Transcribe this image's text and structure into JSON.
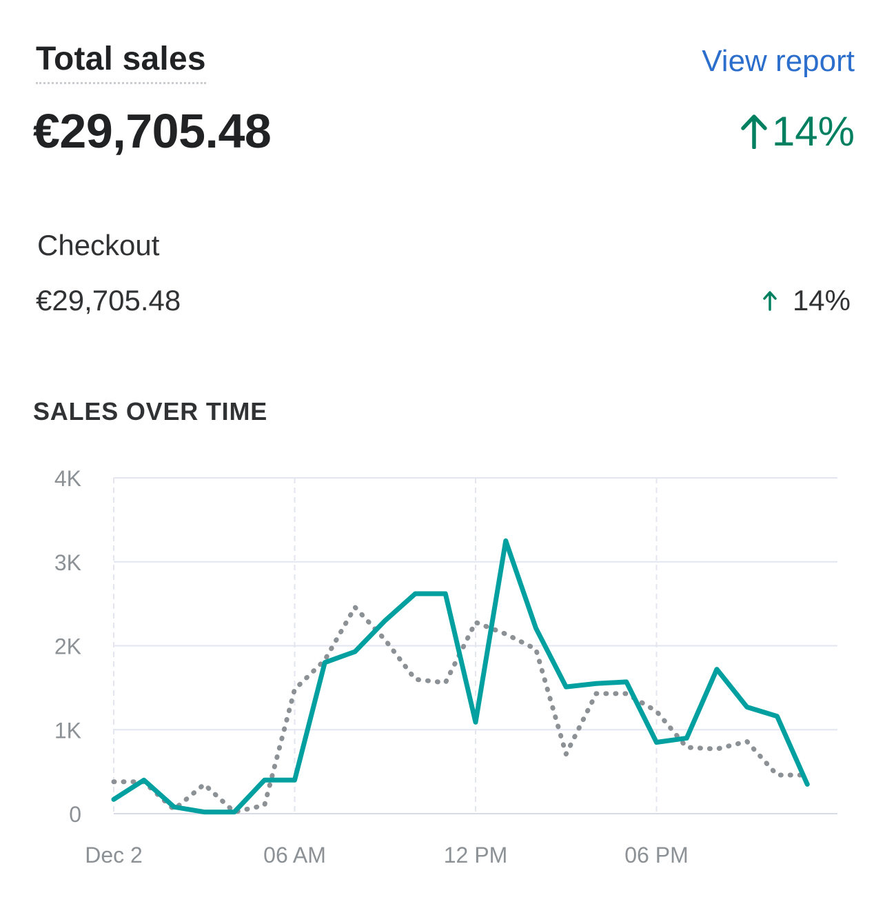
{
  "header": {
    "title": "Total sales",
    "view_report_label": "View report"
  },
  "total": {
    "value": "€29,705.48",
    "change": "14%",
    "change_direction": "up",
    "change_color": "#008060"
  },
  "channel": {
    "label": "Checkout",
    "value": "€29,705.48",
    "change": "14%",
    "change_direction": "up"
  },
  "section_title": "SALES OVER TIME",
  "chart_data": {
    "type": "line",
    "title": "",
    "xlabel": "",
    "ylabel": "",
    "x_tick_labels": [
      "Dec 2",
      "06 AM",
      "12 PM",
      "06 PM"
    ],
    "y_tick_labels": [
      "0",
      "1K",
      "2K",
      "3K",
      "4K"
    ],
    "ylim": [
      0,
      4000
    ],
    "x": [
      "00:00",
      "01:00",
      "02:00",
      "03:00",
      "04:00",
      "05:00",
      "06:00",
      "07:00",
      "08:00",
      "09:00",
      "10:00",
      "11:00",
      "12:00",
      "13:00",
      "14:00",
      "15:00",
      "16:00",
      "17:00",
      "18:00",
      "19:00",
      "20:00",
      "21:00",
      "22:00",
      "23:00"
    ],
    "series": [
      {
        "style": "solid",
        "color": "#00a0a0",
        "values": [
          170,
          400,
          80,
          20,
          20,
          400,
          400,
          1800,
          1930,
          2300,
          2620,
          2620,
          1090,
          3250,
          2210,
          1510,
          1550,
          1570,
          850,
          900,
          1720,
          1270,
          1160,
          350
        ]
      },
      {
        "style": "dotted",
        "color": "#8c9196",
        "values": [
          380,
          380,
          50,
          350,
          20,
          100,
          1480,
          1830,
          2460,
          2070,
          1600,
          1560,
          2280,
          2140,
          1960,
          710,
          1430,
          1430,
          1220,
          790,
          770,
          860,
          460,
          460
        ]
      }
    ],
    "grid": true,
    "legend": "none"
  }
}
